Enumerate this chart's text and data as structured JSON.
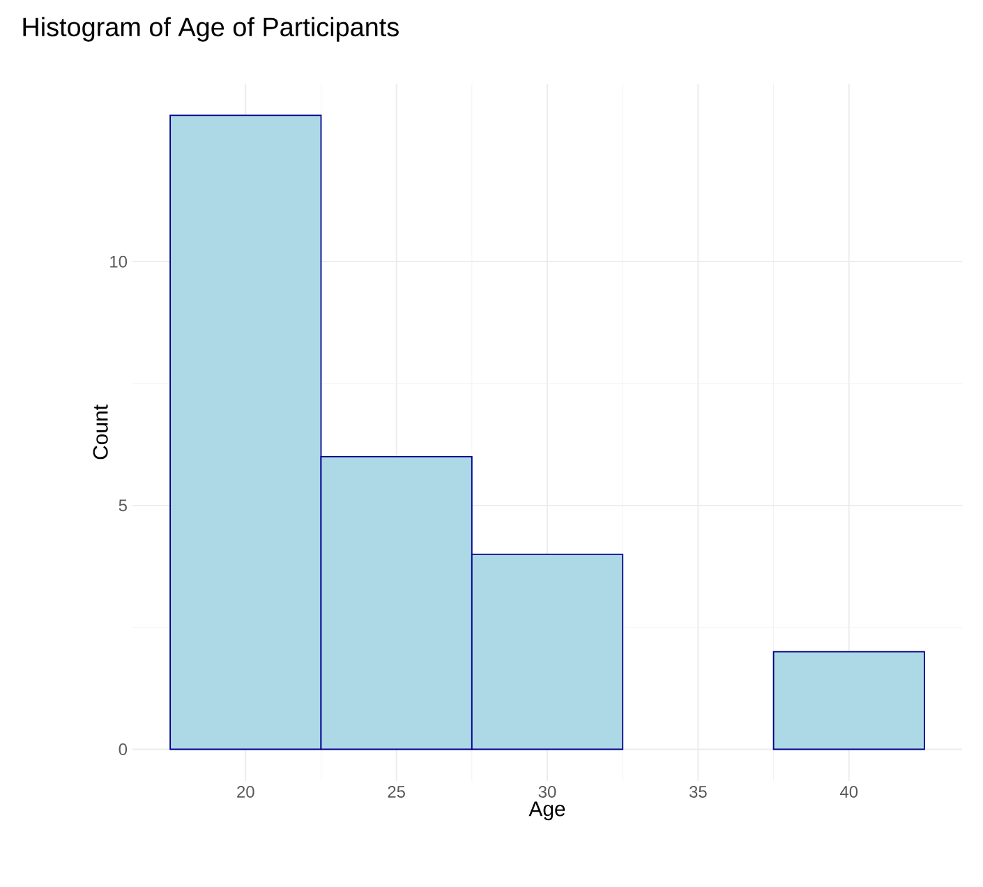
{
  "chart_data": {
    "type": "histogram",
    "title": "Histogram of Age of Participants",
    "xlabel": "Age",
    "ylabel": "Count",
    "bins": [
      17.5,
      22.5,
      27.5,
      32.5,
      37.5,
      42.5
    ],
    "values": [
      13,
      6,
      4,
      0,
      2
    ],
    "color": "#add8e6",
    "xlim": [
      16.25,
      43.75
    ],
    "ylim": [
      -0.65,
      13.65
    ],
    "xticks": [
      20,
      25,
      30,
      35,
      40
    ],
    "yticks": [
      0,
      5,
      10
    ],
    "grid": true
  }
}
